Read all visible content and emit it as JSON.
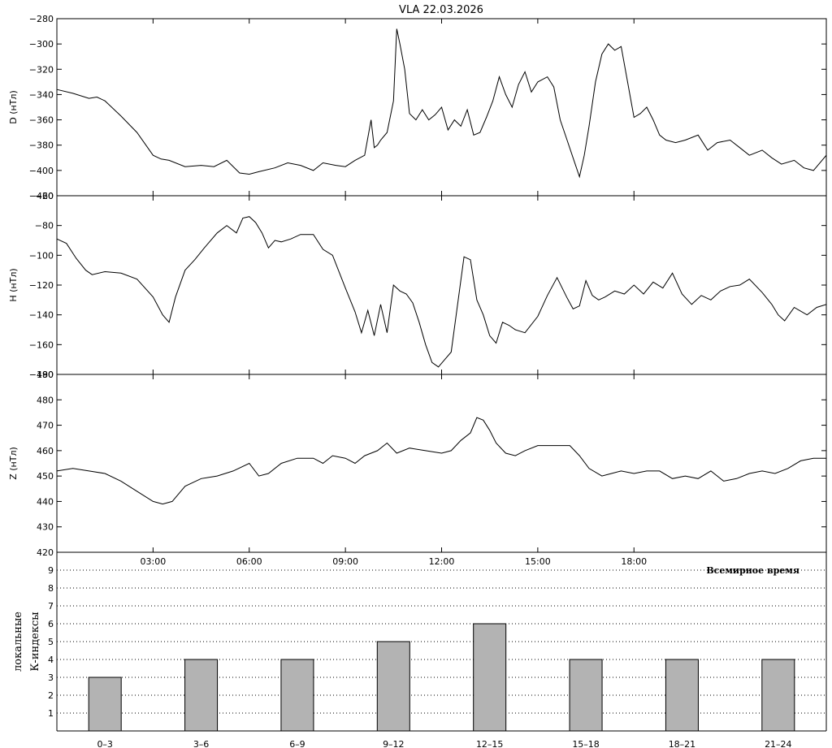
{
  "title": "VLA   22.03.2026",
  "chart_data": [
    {
      "type": "line",
      "ylabel": "D (нТл)",
      "ylim": [
        -420,
        -280
      ],
      "yticks": [
        -280,
        -300,
        -320,
        -340,
        -360,
        -380,
        -400,
        -420
      ],
      "xlim": [
        0,
        24
      ],
      "series": [
        {
          "x": [
            0,
            0.5,
            1,
            1.25,
            1.5,
            2,
            2.5,
            3,
            3.25,
            3.5,
            4,
            4.5,
            4.9,
            5.3,
            5.7,
            6,
            6.3,
            6.8,
            7.2,
            7.6,
            8,
            8.3,
            8.7,
            9,
            9.3,
            9.6,
            9.8,
            9.9,
            10,
            10.1,
            10.3,
            10.5,
            10.6,
            10.7,
            10.85,
            11,
            11.2,
            11.4,
            11.6,
            11.8,
            12,
            12.2,
            12.4,
            12.6,
            12.8,
            13,
            13.2,
            13.4,
            13.6,
            13.8,
            14,
            14.2,
            14.4,
            14.6,
            14.8,
            15,
            15.3,
            15.5,
            15.7,
            15.9,
            16.1,
            16.3,
            16.45,
            16.6,
            16.8,
            17,
            17.2,
            17.4,
            17.6,
            17.8,
            18,
            18.2,
            18.4,
            18.6,
            18.8,
            19,
            19.3,
            19.6,
            20,
            20.3,
            20.6,
            21,
            21.3,
            21.6,
            22,
            22.3,
            22.6,
            23,
            23.3,
            23.6,
            24
          ],
          "values": [
            -336,
            -339,
            -343,
            -342,
            -345,
            -357,
            -370,
            -388,
            -391,
            -392,
            -397,
            -396,
            -397,
            -392,
            -402,
            -403,
            -401,
            -398,
            -394,
            -396,
            -400,
            -394,
            -396,
            -397,
            -392,
            -388,
            -360,
            -382,
            -380,
            -376,
            -370,
            -345,
            -288,
            -300,
            -320,
            -355,
            -360,
            -352,
            -360,
            -356,
            -350,
            -368,
            -360,
            -365,
            -352,
            -372,
            -370,
            -358,
            -345,
            -326,
            -340,
            -350,
            -332,
            -322,
            -338,
            -330,
            -326,
            -334,
            -360,
            -375,
            -390,
            -405,
            -388,
            -365,
            -330,
            -308,
            -300,
            -305,
            -302,
            -330,
            -358,
            -355,
            -350,
            -360,
            -372,
            -376,
            -378,
            -376,
            -372,
            -384,
            -378,
            -376,
            -382,
            -388,
            -384,
            -390,
            -395,
            -392,
            -398,
            -400,
            -388
          ]
        }
      ]
    },
    {
      "type": "line",
      "ylabel": "H (нТл)",
      "ylim": [
        -180,
        -60
      ],
      "yticks": [
        -60,
        -80,
        -100,
        -120,
        -140,
        -160,
        -180
      ],
      "xlim": [
        0,
        24
      ],
      "series": [
        {
          "x": [
            0,
            0.3,
            0.6,
            0.9,
            1.1,
            1.5,
            2,
            2.5,
            3,
            3.3,
            3.5,
            3.7,
            4,
            4.3,
            4.6,
            5,
            5.3,
            5.6,
            5.8,
            6,
            6.2,
            6.4,
            6.6,
            6.8,
            7,
            7.3,
            7.6,
            8,
            8.3,
            8.6,
            9,
            9.3,
            9.5,
            9.7,
            9.9,
            10.1,
            10.3,
            10.5,
            10.7,
            10.9,
            11.1,
            11.3,
            11.5,
            11.7,
            11.9,
            12.1,
            12.3,
            12.5,
            12.7,
            12.9,
            13.1,
            13.3,
            13.5,
            13.7,
            13.9,
            14.1,
            14.3,
            14.6,
            15,
            15.3,
            15.6,
            15.9,
            16.1,
            16.3,
            16.5,
            16.7,
            16.9,
            17.1,
            17.4,
            17.7,
            18,
            18.3,
            18.6,
            18.9,
            19.2,
            19.5,
            19.8,
            20.1,
            20.4,
            20.7,
            21,
            21.3,
            21.6,
            22,
            22.3,
            22.5,
            22.7,
            23,
            23.4,
            23.7,
            24
          ],
          "values": [
            -89,
            -92,
            -102,
            -110,
            -113,
            -111,
            -112,
            -116,
            -128,
            -140,
            -145,
            -128,
            -110,
            -103,
            -95,
            -85,
            -80,
            -85,
            -75,
            -74,
            -78,
            -85,
            -95,
            -90,
            -91,
            -89,
            -86,
            -86,
            -96,
            -100,
            -122,
            -138,
            -152,
            -137,
            -154,
            -133,
            -152,
            -120,
            -124,
            -126,
            -132,
            -145,
            -160,
            -172,
            -175,
            -170,
            -165,
            -133,
            -101,
            -103,
            -130,
            -140,
            -154,
            -159,
            -145,
            -147,
            -150,
            -152,
            -141,
            -127,
            -115,
            -128,
            -136,
            -134,
            -117,
            -127,
            -130,
            -128,
            -124,
            -126,
            -120,
            -126,
            -118,
            -122,
            -112,
            -126,
            -133,
            -127,
            -130,
            -124,
            -121,
            -120,
            -116,
            -125,
            -133,
            -140,
            -144,
            -135,
            -140,
            -135,
            -133
          ]
        }
      ]
    },
    {
      "type": "line",
      "ylabel": "Z (нТл)",
      "ylim": [
        420,
        490
      ],
      "yticks": [
        490,
        480,
        470,
        460,
        450,
        440,
        430,
        420
      ],
      "xlim": [
        0,
        24
      ],
      "series": [
        {
          "x": [
            0,
            0.5,
            1,
            1.5,
            2,
            2.5,
            3,
            3.3,
            3.6,
            4,
            4.5,
            5,
            5.5,
            6,
            6.3,
            6.6,
            7,
            7.5,
            8,
            8.3,
            8.6,
            9,
            9.3,
            9.6,
            10,
            10.3,
            10.6,
            11,
            11.5,
            12,
            12.3,
            12.6,
            12.9,
            13.1,
            13.3,
            13.5,
            13.7,
            14,
            14.3,
            14.6,
            15,
            15.5,
            16,
            16.3,
            16.6,
            17,
            17.3,
            17.6,
            18,
            18.4,
            18.8,
            19.2,
            19.6,
            20,
            20.4,
            20.8,
            21.2,
            21.6,
            22,
            22.4,
            22.8,
            23.2,
            23.6,
            24
          ],
          "values": [
            452,
            453,
            452,
            451,
            448,
            444,
            440,
            439,
            440,
            446,
            449,
            450,
            452,
            455,
            450,
            451,
            455,
            457,
            457,
            455,
            458,
            457,
            455,
            458,
            460,
            463,
            459,
            461,
            460,
            459,
            460,
            464,
            467,
            473,
            472,
            468,
            463,
            459,
            458,
            460,
            462,
            462,
            462,
            458,
            453,
            450,
            451,
            452,
            451,
            452,
            452,
            449,
            450,
            449,
            452,
            448,
            449,
            451,
            452,
            451,
            453,
            456,
            457,
            457
          ]
        }
      ]
    },
    {
      "type": "bar",
      "ylabel_line1": "локальные",
      "ylabel_line2": "К-индексы",
      "xlabel": "Всемирное время",
      "ylim": [
        0,
        10
      ],
      "yticks": [
        1,
        2,
        3,
        4,
        5,
        6,
        7,
        8,
        9
      ],
      "categories": [
        "0–3",
        "3–6",
        "6–9",
        "9–12",
        "12–15",
        "15–18",
        "18–21",
        "21–24"
      ],
      "values": [
        3,
        4,
        4,
        5,
        6,
        4,
        4,
        4
      ]
    }
  ],
  "time_axis": {
    "ticks": [
      3,
      6,
      9,
      12,
      15,
      18
    ],
    "labels": [
      "03:00",
      "06:00",
      "09:00",
      "12:00",
      "15:00",
      "18:00"
    ]
  }
}
